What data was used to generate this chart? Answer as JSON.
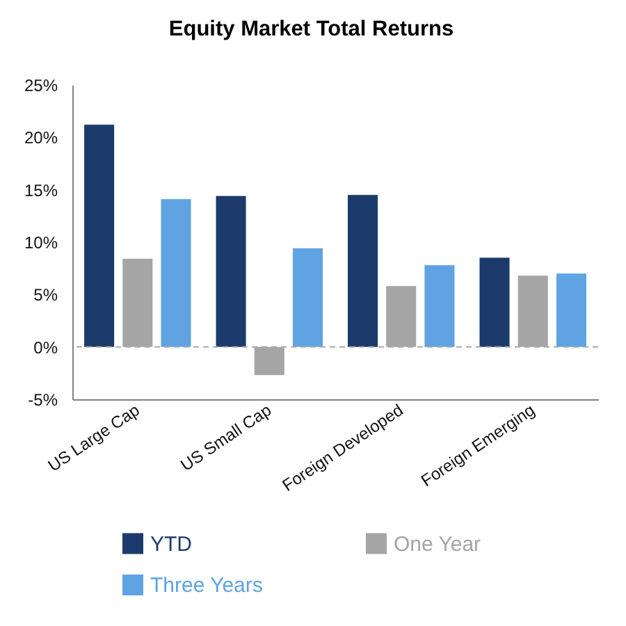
{
  "chart_data": {
    "type": "bar",
    "title": "Equity Market Total Returns",
    "categories": [
      "US Large Cap",
      "US Small Cap",
      "Foreign Developed",
      "Foreign Emerging"
    ],
    "series": [
      {
        "name": "YTD",
        "color": "#1c3b6c",
        "values": [
          21.2,
          14.4,
          14.5,
          8.5
        ]
      },
      {
        "name": "One Year",
        "color": "#a5a5a5",
        "values": [
          8.4,
          -2.7,
          5.8,
          6.8
        ]
      },
      {
        "name": "Three Years",
        "color": "#5fa3e2",
        "values": [
          14.1,
          9.4,
          7.8,
          7.0
        ]
      }
    ],
    "ylim": [
      -5,
      25
    ],
    "yticks": [
      {
        "value": -5,
        "label": "-5%"
      },
      {
        "value": 0,
        "label": "0%"
      },
      {
        "value": 5,
        "label": "5%"
      },
      {
        "value": 10,
        "label": "10%"
      },
      {
        "value": 15,
        "label": "15%"
      },
      {
        "value": 20,
        "label": "20%"
      },
      {
        "value": 25,
        "label": "25%"
      }
    ],
    "legend": "bottom",
    "ref_lines": [
      {
        "axis": "y",
        "value": 0,
        "color": "#aaaaaa",
        "line_style": "dashed"
      }
    ]
  }
}
